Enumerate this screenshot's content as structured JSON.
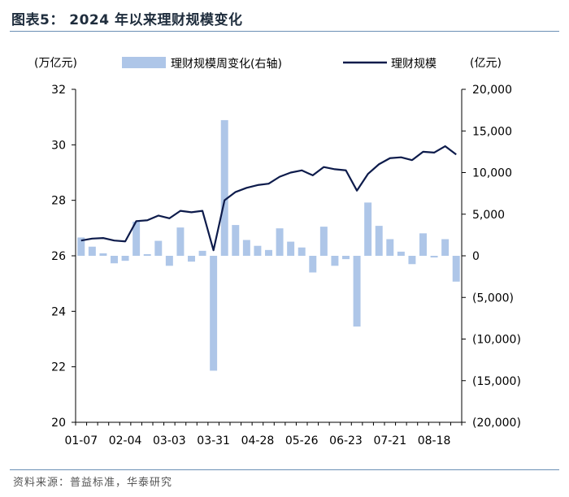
{
  "header": {
    "title": "图表5：  2024 年以来理财规模变化"
  },
  "footer": {
    "source": "资料来源：普益标准，华泰研究"
  },
  "colors": {
    "bar": "#aec6e8",
    "line": "#0d1b4b",
    "axis": "#000000",
    "rule": "#6a8fb5"
  },
  "chart_data": {
    "type": "bar+line",
    "left_unit": "(万亿元)",
    "right_unit": "(亿元)",
    "legend": [
      "理财规模周变化(右轴)",
      "理财规模"
    ],
    "legend_placement": "top-center",
    "grid": false,
    "y_left": {
      "min": 20,
      "max": 32,
      "ticks": [
        "20",
        "22",
        "24",
        "26",
        "28",
        "30",
        "32"
      ]
    },
    "y_right": {
      "min": -20000,
      "max": 20000,
      "ticks": [
        "(20,000)",
        "(15,000)",
        "(10,000)",
        "(5,000)",
        "0",
        "5,000",
        "10,000",
        "15,000",
        "20,000"
      ]
    },
    "x_tick_labels": [
      "01-07",
      "02-04",
      "03-03",
      "03-31",
      "04-28",
      "05-26",
      "06-23",
      "07-21",
      "08-18"
    ],
    "x_tick_positions": [
      0,
      4,
      8,
      12,
      16,
      20,
      24,
      28,
      32
    ],
    "series": [
      {
        "name": "理财规模周变化(右轴)",
        "axis": "right",
        "kind": "bar",
        "values": [
          2200,
          1100,
          300,
          -900,
          -600,
          4100,
          200,
          1800,
          -1200,
          3400,
          -700,
          600,
          -13800,
          16300,
          3700,
          1900,
          1200,
          700,
          3300,
          1700,
          1000,
          -2000,
          3500,
          -1200,
          -400,
          -8500,
          6400,
          3600,
          2000,
          500,
          -1000,
          2700,
          -200,
          2000,
          -3100
        ]
      },
      {
        "name": "理财规模",
        "axis": "left",
        "kind": "line",
        "values": [
          26.55,
          26.62,
          26.64,
          26.55,
          26.52,
          27.25,
          27.28,
          27.45,
          27.35,
          27.62,
          27.57,
          27.62,
          26.2,
          28.0,
          28.3,
          28.45,
          28.55,
          28.6,
          28.85,
          29.0,
          29.08,
          28.9,
          29.2,
          29.12,
          29.08,
          28.35,
          28.95,
          29.3,
          29.52,
          29.55,
          29.45,
          29.75,
          29.72,
          29.95,
          29.65
        ]
      }
    ]
  }
}
